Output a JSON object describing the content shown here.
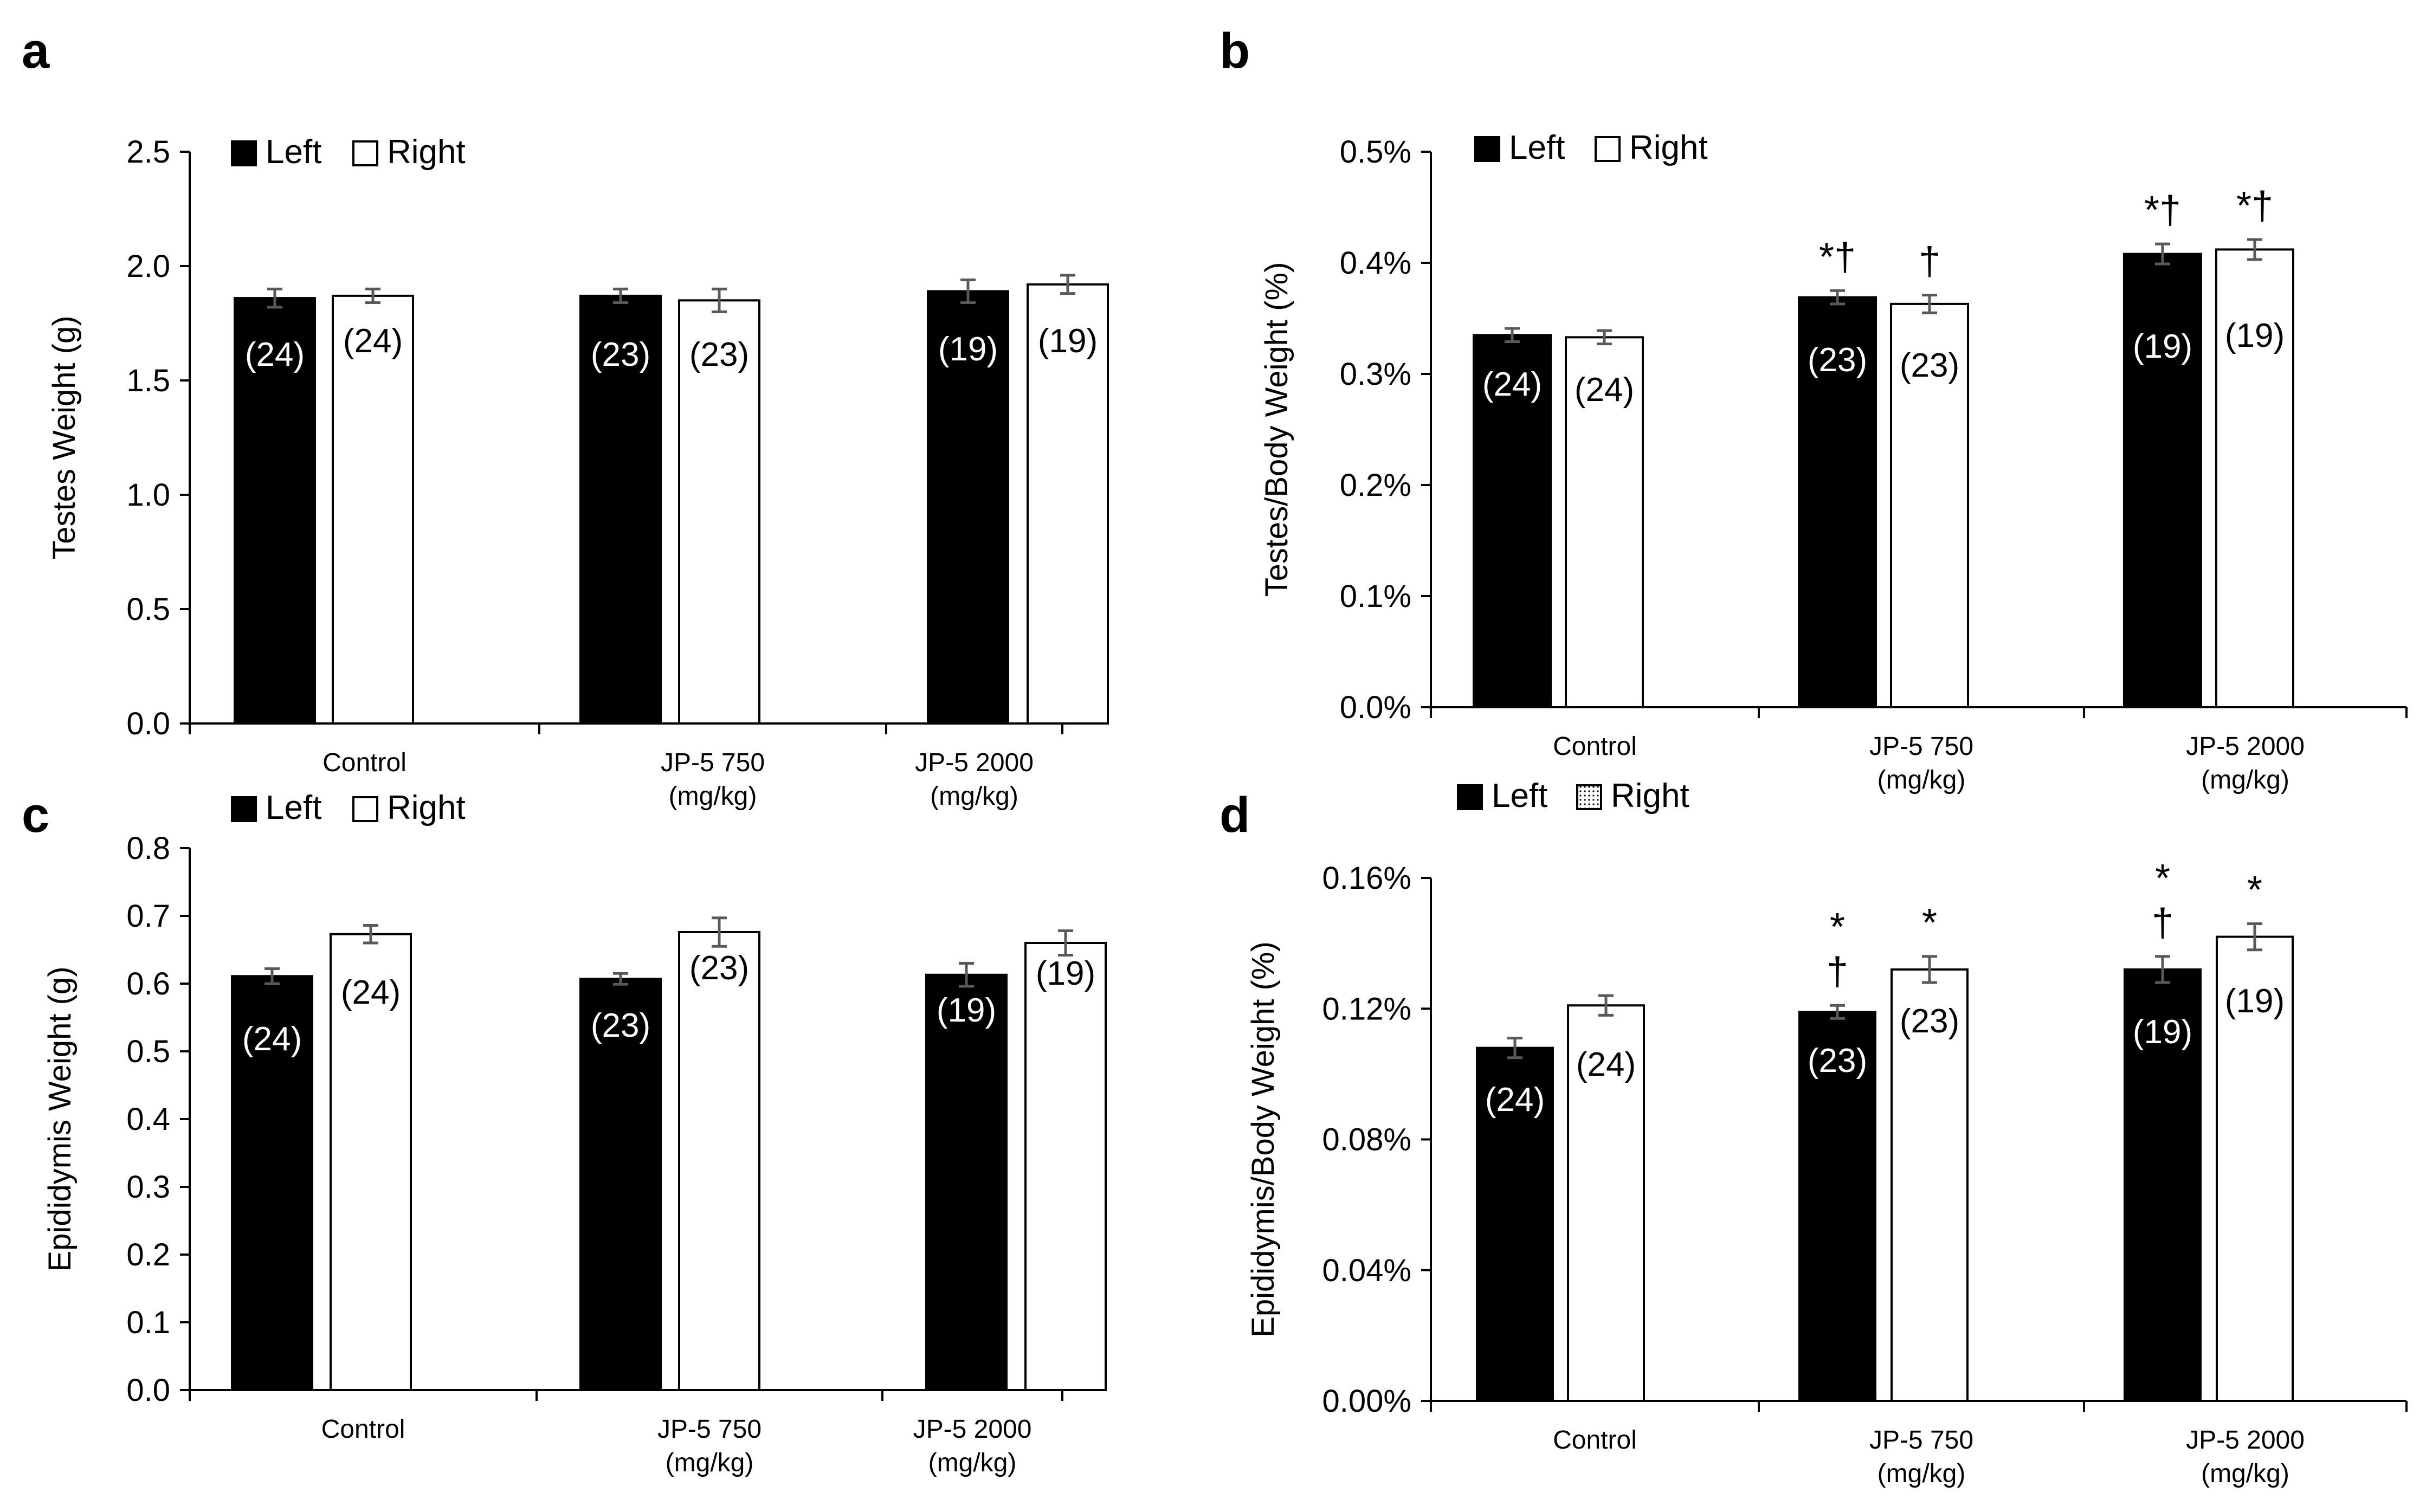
{
  "colors": {
    "left_fill": "#000000",
    "right_fill": "#ffffff",
    "axis": "#000000",
    "error_bar": "#595959",
    "text": "#000000"
  },
  "chart_data": [
    {
      "panel_label": "a",
      "type": "bar",
      "ylabel": "Testes Weight (g)",
      "ylim": [
        0,
        2.5
      ],
      "ytick_values": [
        0,
        0.5,
        1.0,
        1.5,
        2.0,
        2.5
      ],
      "ytick_labels": [
        "0.0",
        "0.5",
        "1.0",
        "1.5",
        "2.0",
        "2.5"
      ],
      "categories": [
        [
          "Control"
        ],
        [
          "JP-5 750",
          "(mg/kg)"
        ],
        [
          "JP-5 2000",
          "(mg/kg)"
        ]
      ],
      "legend": {
        "position": "top-left",
        "entries": [
          "Left",
          "Right"
        ],
        "right_pattern": "plain"
      },
      "series": [
        {
          "name": "Left",
          "values": [
            1.86,
            1.87,
            1.89
          ],
          "errors": [
            0.04,
            0.03,
            0.05
          ],
          "n_labels": [
            "(24)",
            "(23)",
            "(19)"
          ],
          "marks": [
            "",
            "",
            ""
          ]
        },
        {
          "name": "Right",
          "values": [
            1.87,
            1.85,
            1.92
          ],
          "errors": [
            0.03,
            0.05,
            0.04
          ],
          "n_labels": [
            "(24)",
            "(23)",
            "(19)"
          ],
          "marks": [
            "",
            "",
            ""
          ]
        }
      ]
    },
    {
      "panel_label": "b",
      "type": "bar",
      "ylabel": "Testes/Body Weight (%)",
      "ylim": [
        0,
        0.5
      ],
      "ytick_values": [
        0,
        0.1,
        0.2,
        0.3,
        0.4,
        0.5
      ],
      "ytick_labels": [
        "0.0%",
        "0.1%",
        "0.2%",
        "0.3%",
        "0.4%",
        "0.5%"
      ],
      "categories": [
        [
          "Control"
        ],
        [
          "JP-5 750",
          "(mg/kg)"
        ],
        [
          "JP-5 2000",
          "(mg/kg)"
        ]
      ],
      "legend": {
        "position": "top-left",
        "entries": [
          "Left",
          "Right"
        ],
        "right_pattern": "plain"
      },
      "series": [
        {
          "name": "Left",
          "values": [
            0.335,
            0.369,
            0.408
          ],
          "errors": [
            0.006,
            0.006,
            0.009
          ],
          "n_labels": [
            "(24)",
            "(23)",
            "(19)"
          ],
          "marks": [
            "",
            "*†",
            "*†"
          ]
        },
        {
          "name": "Right",
          "values": [
            0.333,
            0.363,
            0.412
          ],
          "errors": [
            0.006,
            0.008,
            0.009
          ],
          "n_labels": [
            "(24)",
            "(23)",
            "(19)"
          ],
          "marks": [
            "",
            "†",
            "*†"
          ]
        }
      ]
    },
    {
      "panel_label": "c",
      "type": "bar",
      "ylabel": "Epididymis Weight (g)",
      "ylim": [
        0,
        0.8
      ],
      "ytick_values": [
        0,
        0.1,
        0.2,
        0.3,
        0.4,
        0.5,
        0.6,
        0.7,
        0.8
      ],
      "ytick_labels": [
        "0.0",
        "0.1",
        "0.2",
        "0.3",
        "0.4",
        "0.5",
        "0.6",
        "0.7",
        "0.8"
      ],
      "categories": [
        [
          "Control"
        ],
        [
          "JP-5 750",
          "(mg/kg)"
        ],
        [
          "JP-5 2000",
          "(mg/kg)"
        ]
      ],
      "legend": {
        "position": "top-left",
        "entries": [
          "Left",
          "Right"
        ],
        "right_pattern": "plain"
      },
      "series": [
        {
          "name": "Left",
          "values": [
            0.611,
            0.607,
            0.613
          ],
          "errors": [
            0.011,
            0.008,
            0.017
          ],
          "n_labels": [
            "(24)",
            "(23)",
            "(19)"
          ],
          "marks": [
            "",
            "",
            ""
          ]
        },
        {
          "name": "Right",
          "values": [
            0.673,
            0.676,
            0.66
          ],
          "errors": [
            0.013,
            0.021,
            0.018
          ],
          "n_labels": [
            "(24)",
            "(23)",
            "(19)"
          ],
          "marks": [
            "",
            "",
            ""
          ]
        }
      ]
    },
    {
      "panel_label": "d",
      "type": "bar",
      "ylabel": "Epididymis/Body Weight (%)",
      "ylim": [
        0,
        0.16
      ],
      "ytick_values": [
        0,
        0.04,
        0.08,
        0.12,
        0.16
      ],
      "ytick_labels": [
        "0.00%",
        "0.04%",
        "0.08%",
        "0.12%",
        "0.16%"
      ],
      "categories": [
        [
          "Control"
        ],
        [
          "JP-5 750",
          "(mg/kg)"
        ],
        [
          "JP-5 2000",
          "(mg/kg)"
        ]
      ],
      "legend": {
        "position": "top-left",
        "entries": [
          "Left",
          "Right"
        ],
        "right_pattern": "dotted"
      },
      "series": [
        {
          "name": "Left",
          "values": [
            0.108,
            0.119,
            0.132
          ],
          "errors": [
            0.003,
            0.002,
            0.004
          ],
          "n_labels": [
            "(24)",
            "(23)",
            "(19)"
          ],
          "marks": [
            "",
            "*|†",
            "*|†"
          ]
        },
        {
          "name": "Right",
          "values": [
            0.121,
            0.132,
            0.142
          ],
          "errors": [
            0.003,
            0.004,
            0.004
          ],
          "n_labels": [
            "(24)",
            "(23)",
            "(19)"
          ],
          "marks": [
            "",
            "*",
            "*"
          ]
        }
      ]
    }
  ]
}
